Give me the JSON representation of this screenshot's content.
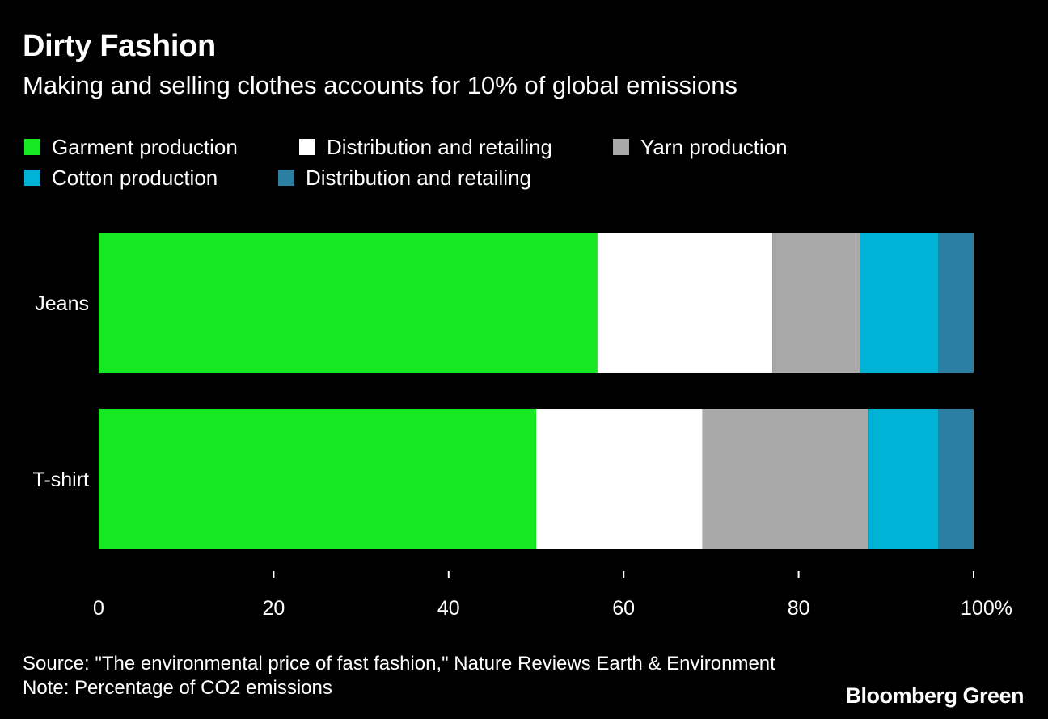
{
  "title": "Dirty Fashion",
  "subtitle": "Making and selling clothes accounts for 10% of global emissions",
  "source": "Source: \"The environmental price of fast fashion,\" Nature Reviews Earth & Environment",
  "note": "Note: Percentage of CO2 emissions",
  "brand": "Bloomberg Green",
  "chart_data": {
    "type": "bar",
    "orientation": "horizontal",
    "stacked": true,
    "categories": [
      "Jeans",
      "T-shirt"
    ],
    "series": [
      {
        "name": "Garment production",
        "color": "#16e921",
        "values": [
          57,
          50
        ]
      },
      {
        "name": "Distribution and retailing",
        "color": "#ffffff",
        "values": [
          20,
          19
        ]
      },
      {
        "name": "Yarn production",
        "color": "#a9a9a9",
        "values": [
          10,
          19
        ]
      },
      {
        "name": "Cotton production",
        "color": "#00b2d5",
        "values": [
          9,
          8
        ]
      },
      {
        "name": "Distribution and retailing",
        "color": "#2a7fa3",
        "values": [
          4,
          4
        ]
      }
    ],
    "xticks": [
      "0",
      "20",
      "40",
      "60",
      "80",
      "100%"
    ],
    "xlim": [
      0,
      100
    ],
    "legend_position": "top-left",
    "grid": false
  }
}
